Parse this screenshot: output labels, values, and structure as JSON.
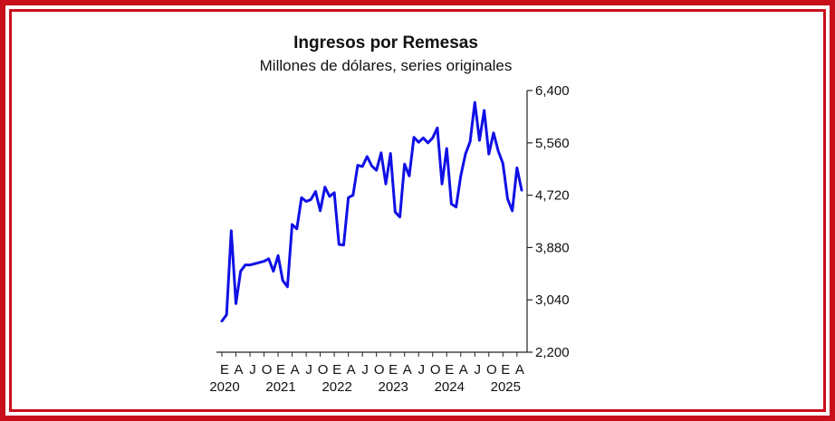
{
  "colors": {
    "frame": "#c8101a",
    "series": "#1010e6",
    "axis": "#222222"
  },
  "chart_data": {
    "type": "line",
    "title": "Ingresos por Remesas",
    "subtitle": "Millones de dólares, series originales",
    "xlabel": "",
    "ylabel": "",
    "ylim": [
      2200,
      6400
    ],
    "yticks": [
      2200,
      3040,
      3880,
      4720,
      5560,
      6400
    ],
    "ytick_labels": [
      "2,200",
      "3,040",
      "3,880",
      "4,720",
      "5,560",
      "6,400"
    ],
    "y_axis_side": "right",
    "grid": false,
    "x_month_labels": [
      "E",
      "A",
      "J",
      "O",
      "E",
      "A",
      "J",
      "O",
      "E",
      "A",
      "J",
      "O",
      "E",
      "A",
      "J",
      "O",
      "E",
      "A",
      "J",
      "O",
      "E",
      "A"
    ],
    "x_year_labels": [
      "2020",
      "2021",
      "2022",
      "2023",
      "2024",
      "2025"
    ],
    "series": [
      {
        "start": "2020-01",
        "values": [
          2700,
          2800,
          4150,
          2980,
          3500,
          3600,
          3600,
          3620,
          3640,
          3660,
          3700,
          3500,
          3750,
          3350,
          3250,
          4250,
          4180,
          4680,
          4620,
          4650,
          4780,
          4470,
          4850,
          4700,
          4760,
          3930,
          3920,
          4680,
          4720,
          5200,
          5180,
          5340,
          5190,
          5120,
          5400,
          4900,
          5390,
          4450,
          4370,
          5220,
          5030,
          5650,
          5570,
          5640,
          5560,
          5640,
          5800,
          4900,
          5470,
          4580,
          4530,
          5030,
          5380,
          5580,
          6210,
          5600,
          6080,
          5380,
          5720,
          5430,
          5230,
          4660,
          4470,
          5160,
          4800
        ]
      }
    ]
  }
}
